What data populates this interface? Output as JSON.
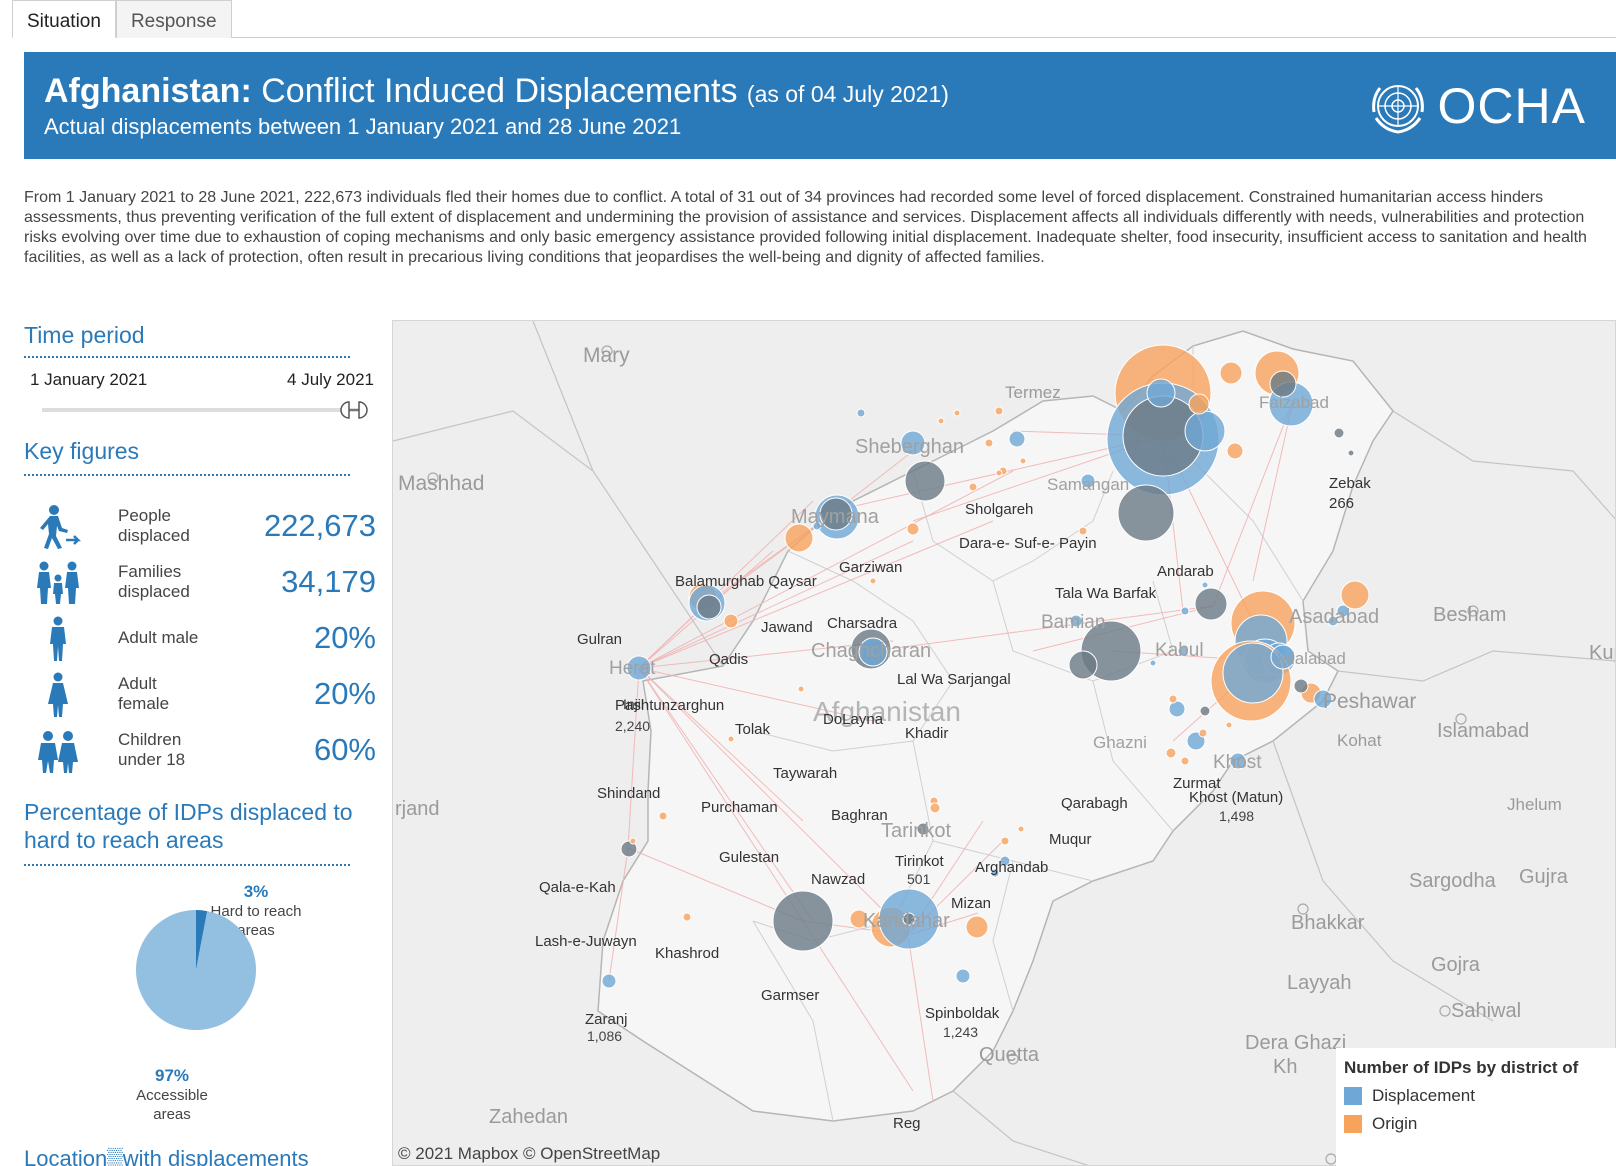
{
  "tabs": [
    "Situation",
    "Response"
  ],
  "banner": {
    "title_bold": "Afghanistan:",
    "title_rest": " Conflict Induced Displacements",
    "as_of": "(as of 04 July 2021)",
    "subtitle": "Actual displacements between 1 January 2021 and 28 June 2021",
    "logo_text": "OCHA"
  },
  "intro": "From 1 January 2021 to 28 June 2021, 222,673 individuals fled their homes due to conflict. A total of 31 out of 34 provinces had recorded some level of forced displacement. Constrained humanitarian access hinders assessments, thus preventing verification of the full extent of displacement and undermining the provision of assistance and services. Displacement affects all individuals differently with needs, vulnerabilities and protection risks evolving over time due to exhaustion of coping mechanisms and only basic emergency assistance provided following initial displacement. Inadequate shelter, food insecurity, insufficient access to sanitation and health facilities, as well as a lack of protection, often result in precarious living conditions that jeopardises the well-being and dignity of affected families.",
  "time_period": {
    "title": "Time period",
    "start": "1 January 2021",
    "end": "4 July 2021"
  },
  "key_figures": {
    "title": "Key figures",
    "rows": [
      {
        "label": "People\ndisplaced",
        "value": "222,673",
        "icon": "person-walking-icon"
      },
      {
        "label": "Families\ndisplaced",
        "value": "34,179",
        "icon": "family-icon"
      },
      {
        "label": "Adult male",
        "value": "20%",
        "icon": "male-icon"
      },
      {
        "label": "Adult\nfemale",
        "value": "20%",
        "icon": "female-icon"
      },
      {
        "label": "Children\nunder 18",
        "value": "60%",
        "icon": "children-icon"
      }
    ]
  },
  "hard_to_reach": {
    "title_line1": "Percentage of IDPs displaced to",
    "title_line2": "hard to reach areas",
    "hard_pct": "3%",
    "hard_label1": "Hard to reach",
    "hard_label2": "areas",
    "acc_pct": "97%",
    "acc_label1": "Accessible",
    "acc_label2": "areas"
  },
  "chart_data": {
    "type": "pie",
    "slices": [
      {
        "name": "Hard to reach areas",
        "value": 3
      },
      {
        "name": "Accessible areas",
        "value": 97
      }
    ]
  },
  "bottom_title": "Location▒with displacements",
  "map": {
    "credit": "© 2021 Mapbox  © OpenStreetMap",
    "legend": {
      "title": "Number of IDPs by district of",
      "items": [
        "Displacement",
        "Origin"
      ]
    },
    "colors": {
      "displacement": "#6fa8d6",
      "origin": "#f7a35c",
      "grey": "#6b7a86",
      "link": "#f2b0b0"
    },
    "places_region": [
      "Mary",
      "Termez",
      "Mashhad",
      "Besham",
      "Peshawar",
      "Islamabad",
      "Kohat",
      "Jhelum",
      "Sargodha",
      "Gujra",
      "Bhakkar",
      "Layyah",
      "Gojra",
      "Sahiwal",
      "Dera Ghazi",
      "Kh",
      "Quetta",
      "Zahedan",
      "rjand",
      "Kup"
    ],
    "places_afg": [
      "Sheberghan",
      "Samangan",
      "Faizabad",
      "Maymana",
      "Herat",
      "Chaghcharan",
      "Afghanistan",
      "Bamian",
      "Kabul",
      "Asadabad",
      "Jalalabad",
      "Ghazni",
      "Khost",
      "Tarinkot",
      "Kandahar"
    ],
    "districts": [
      "Zebak",
      "266",
      "Sholgareh",
      "Dara-e- Suf-e- Payin",
      "Garziwan",
      "Balamurghab Qaysar",
      "Andarab",
      "Tala Wa Barfak",
      "Gulran",
      "Jawand",
      "Charsadra",
      "Qadis",
      "Lal Wa Sarjangal",
      "Pashtunzarghun",
      "2,240",
      "Injil",
      "DoLayna",
      "Tolak",
      "Khadir",
      "Taywarah",
      "Shindand",
      "Purchaman",
      "Baghran",
      "Qarabagh",
      "Zurmat",
      "Khost (Matun)",
      "1,498",
      "Muqur",
      "Tirinkot",
      "501",
      "Arghandab",
      "Gulestan",
      "Nawzad",
      "Mizan",
      "Qala-e-Kah",
      "Lash-e-Juwayn",
      "Khashrod",
      "Garmser",
      "Spinboldak",
      "1,243",
      "Zaranj",
      "1,086",
      "Reg"
    ]
  }
}
